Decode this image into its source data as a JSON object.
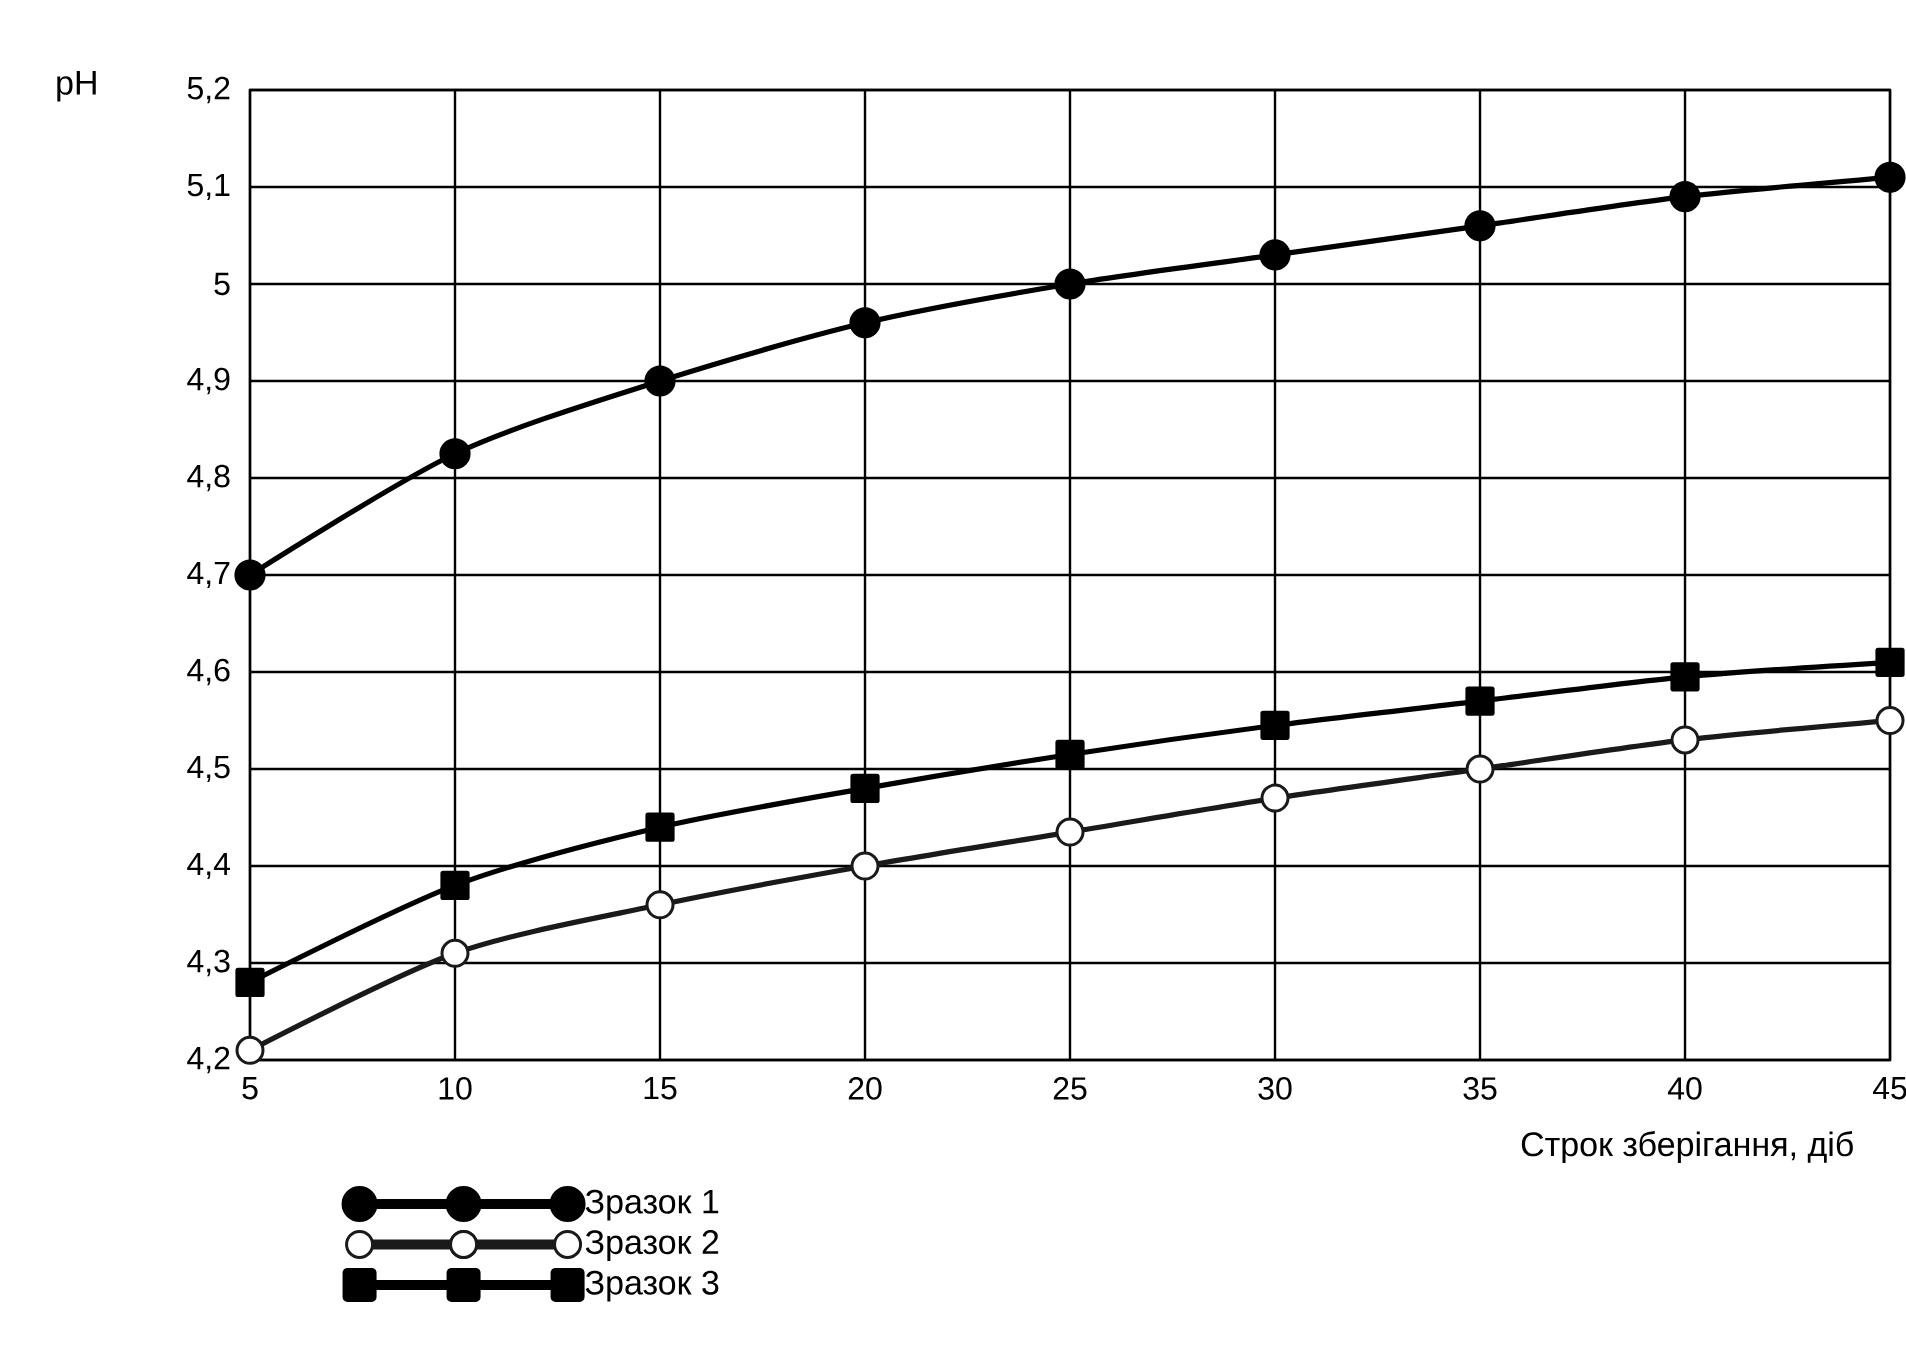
{
  "chart_data": {
    "type": "line",
    "xlabel": "Строк зберігання, діб",
    "ylabel": "pH",
    "categories": [
      "5",
      "10",
      "15",
      "20",
      "25",
      "30",
      "35",
      "40",
      "45"
    ],
    "series": [
      {
        "name": "Зразок 1",
        "color": "#000000",
        "marker": "circle",
        "values": [
          4.7,
          4.825,
          4.9,
          4.96,
          5.0,
          5.03,
          5.06,
          5.09,
          5.11
        ]
      },
      {
        "name": "Зразок 2",
        "color": "#1a1a1a",
        "marker": "circle open",
        "values": [
          4.21,
          4.31,
          4.36,
          4.4,
          4.435,
          4.47,
          4.5,
          4.53,
          4.55
        ]
      },
      {
        "name": "Зразок 3",
        "color": "#000000",
        "marker": "square",
        "values": [
          4.28,
          4.38,
          4.44,
          4.48,
          4.515,
          4.545,
          4.57,
          4.595,
          4.61
        ]
      }
    ],
    "ylim": [
      4.2,
      5.2
    ],
    "yticks": [
      {
        "value": 4.2,
        "label": "4,2"
      },
      {
        "value": 4.3,
        "label": "4,3"
      },
      {
        "value": 4.4,
        "label": "4,4"
      },
      {
        "value": 4.5,
        "label": "4,5"
      },
      {
        "value": 4.6,
        "label": "4,6"
      },
      {
        "value": 4.7,
        "label": "4,7"
      },
      {
        "value": 4.8,
        "label": "4,8"
      },
      {
        "value": 4.9,
        "label": "4,9"
      },
      {
        "value": 5,
        "label": "5"
      },
      {
        "value": 5.1,
        "label": "5,1"
      },
      {
        "value": 5.2,
        "label": "5,2"
      }
    ],
    "grid": true,
    "legend": "bottom left",
    "line_style": "solid"
  }
}
